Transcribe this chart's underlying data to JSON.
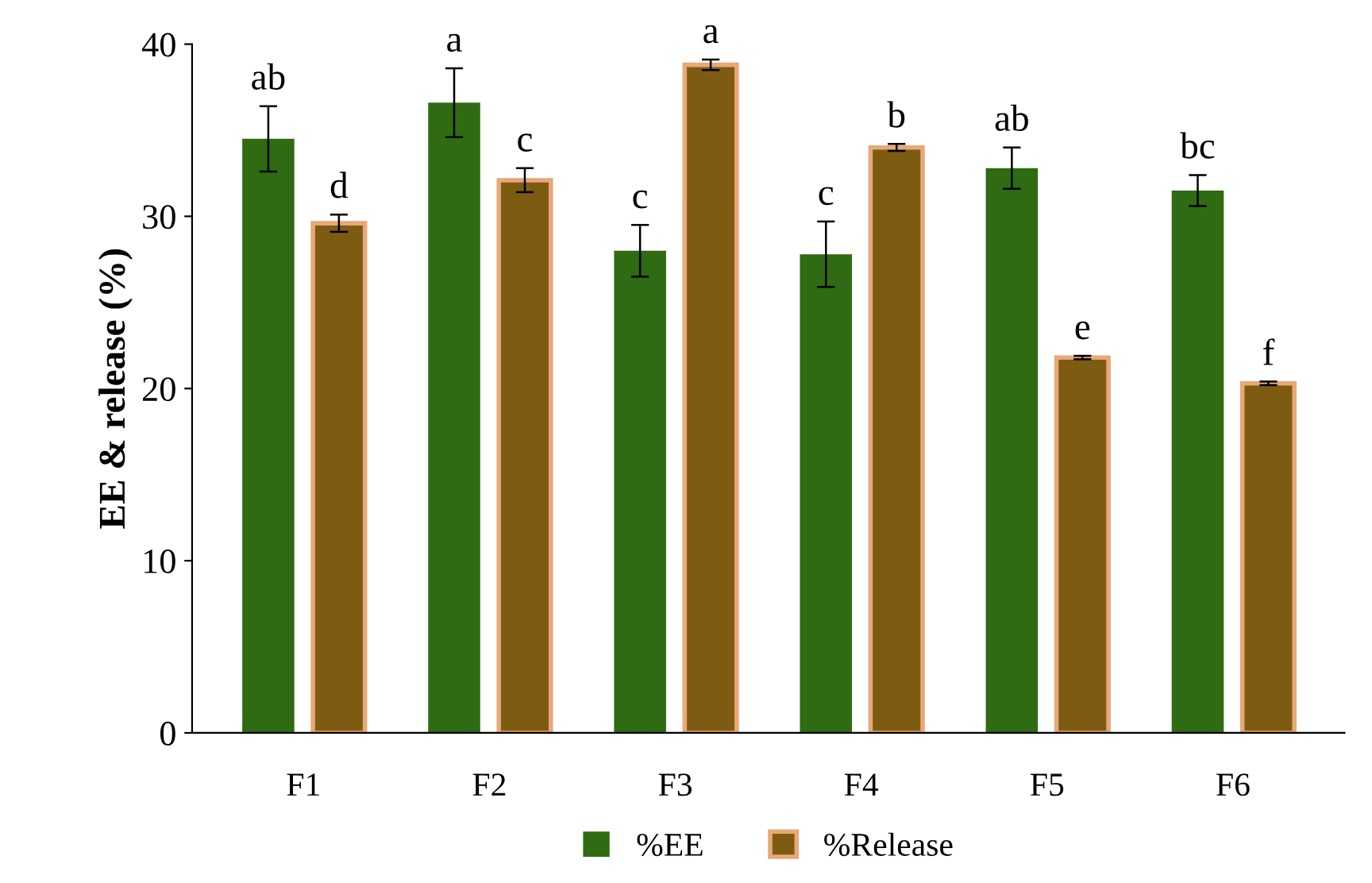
{
  "chart_data": {
    "type": "bar",
    "ylabel": "EE & release (%)",
    "categories": [
      "F1",
      "F2",
      "F3",
      "F4",
      "F5",
      "F6"
    ],
    "series": [
      {
        "name": "%EE",
        "color": "#2e6b12",
        "values": [
          34.5,
          36.6,
          28.0,
          27.8,
          32.8,
          31.5
        ],
        "errors": [
          1.9,
          2.0,
          1.5,
          1.9,
          1.2,
          0.9
        ]
      },
      {
        "name": "%Release",
        "color": "#7d5c12",
        "values": [
          29.6,
          32.1,
          38.8,
          34.0,
          21.8,
          20.3
        ],
        "errors": [
          0.5,
          0.7,
          0.3,
          0.2,
          0.1,
          0.1
        ]
      }
    ],
    "ylim": [
      0,
      40
    ],
    "yticks": [
      0,
      10,
      20,
      30,
      40
    ],
    "grid": false,
    "legend": "bottom",
    "annotations": [
      "ab",
      "a",
      "c",
      "c",
      "ab",
      "bc",
      "d",
      "c",
      "a",
      "b",
      "e",
      "f"
    ]
  }
}
